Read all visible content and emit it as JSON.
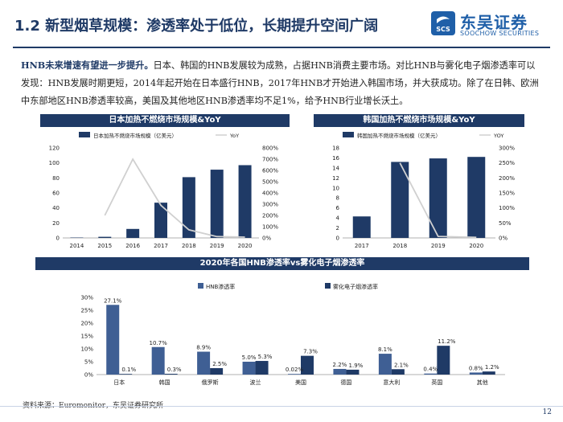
{
  "header": {
    "title": "1.2 新型烟草规模：渗透率处于低位，长期提升空间广阔",
    "logo_cn": "东吴证券",
    "logo_en": "SOOCHOW SECURITIES",
    "logo_mark_text": "SCS"
  },
  "intro": {
    "lead": "HNB未来增速有望进一步提升。",
    "body": "日本、韩国的HNB发展较为成熟，占据HNB消费主要市场。对比HNB与雾化电子烟渗透率可以发现：HNB发展时期更短，2014年起开始在日本盛行HNB，2017年HNB才开始进入韩国市场，并大获成功。除了在日韩、欧洲中东部地区HNB渗透率较高，美国及其他地区HNB渗透率均不足1%，给予HNB行业增长沃土。"
  },
  "colors": {
    "primary": "#1f3a66",
    "line": "#d0d0d0"
  },
  "chart_data": [
    {
      "type": "bar",
      "title": "日本加热不燃烧市场规模&YoY",
      "legend": [
        "日本加热不燃烧市场规模（亿美元）",
        "YoY"
      ],
      "categories": [
        "2014",
        "2015",
        "2016",
        "2017",
        "2018",
        "2019",
        "2020"
      ],
      "values": [
        0.5,
        1.5,
        12,
        47,
        81,
        91,
        97
      ],
      "yoy": [
        null,
        2.0,
        7.0,
        2.9,
        0.72,
        0.12,
        0.07
      ],
      "y_ticks": [
        "0",
        "20",
        "40",
        "60",
        "80",
        "100",
        "120"
      ],
      "y2_ticks": [
        "0%",
        "100%",
        "200%",
        "300%",
        "400%",
        "500%",
        "600%",
        "700%",
        "800%"
      ],
      "ylim": [
        0,
        120
      ],
      "y2lim": [
        0,
        8
      ]
    },
    {
      "type": "bar",
      "title": "韩国加热不燃烧市场规模&YoY",
      "legend": [
        "韩国加热不燃烧市场规模（亿美元）",
        "YOY"
      ],
      "categories": [
        "2017",
        "2018",
        "2019",
        "2020"
      ],
      "values": [
        4.3,
        15.2,
        15.9,
        16.2
      ],
      "yoy": [
        null,
        2.5,
        0.05,
        0.02
      ],
      "y_ticks": [
        "0",
        "2",
        "4",
        "6",
        "8",
        "10",
        "12",
        "14",
        "16",
        "18"
      ],
      "y2_ticks": [
        "0%",
        "50%",
        "100%",
        "150%",
        "200%",
        "250%",
        "300%"
      ],
      "ylim": [
        0,
        18
      ],
      "y2lim": [
        0,
        3
      ]
    },
    {
      "type": "bar",
      "title": "2020年各国HNB渗透率vs雾化电子烟渗透率",
      "series_names": [
        "HNB渗透率",
        "雾化电子烟渗透率"
      ],
      "categories": [
        "日本",
        "韩国",
        "俄罗斯",
        "波兰",
        "美国",
        "德国",
        "意大利",
        "英国",
        "其他"
      ],
      "hnb": [
        27.1,
        10.7,
        8.9,
        5.0,
        0.02,
        2.2,
        8.1,
        0.4,
        0.8
      ],
      "vape": [
        0.1,
        0.3,
        2.5,
        5.3,
        7.3,
        1.9,
        2.1,
        11.2,
        1.2
      ],
      "hnb_labels": [
        "27.1%",
        "10.7%",
        "8.9%",
        "5.0%",
        "0.02%",
        "2.2%",
        "8.1%",
        "0.4%",
        "0.8%"
      ],
      "vape_labels": [
        "0.1%",
        "0.3%",
        "2.5%",
        "5.3%",
        "7.3%",
        "1.9%",
        "2.1%",
        "11.2%",
        "1.2%"
      ],
      "y_ticks": [
        "0%",
        "5%",
        "10%",
        "15%",
        "20%",
        "25%",
        "30%"
      ],
      "ylim": [
        0,
        30
      ]
    }
  ],
  "footer": {
    "source": "资料来源：Euromonitor，东吴证券研究所",
    "page": "12"
  }
}
